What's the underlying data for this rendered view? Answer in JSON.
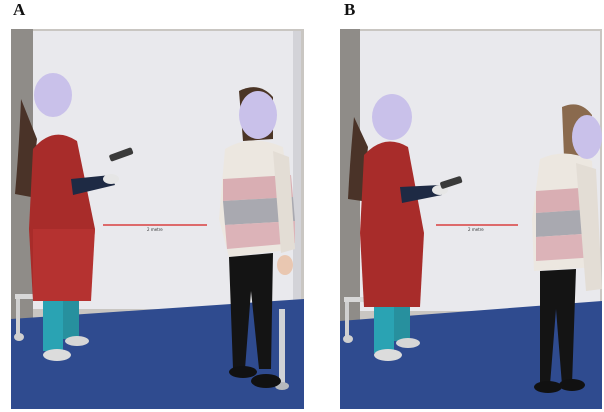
{
  "panels": [
    {
      "label": "A",
      "distance_marker": "2 metre"
    },
    {
      "label": "B",
      "distance_marker": "2 metre"
    }
  ],
  "colors": {
    "floor": "#2e4a8c",
    "screen": "#e8e8ec",
    "apron": "#b5302e",
    "face_mask": "#c9c1ea",
    "distance_line": "#d94040"
  }
}
